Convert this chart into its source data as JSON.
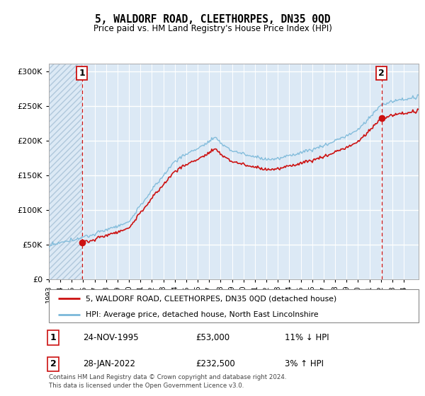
{
  "title": "5, WALDORF ROAD, CLEETHORPES, DN35 0QD",
  "subtitle": "Price paid vs. HM Land Registry's House Price Index (HPI)",
  "ytick_vals": [
    0,
    50000,
    100000,
    150000,
    200000,
    250000,
    300000
  ],
  "ylim": [
    0,
    312000
  ],
  "xlim_start": 1993.0,
  "xlim_end": 2025.3,
  "hpi_color": "#7ab8d9",
  "price_color": "#cc1111",
  "marker_color": "#cc1111",
  "dashed_line_color": "#cc1111",
  "plot_bg": "#dce9f5",
  "hatch_color": "#b0c8dc",
  "grid_color": "#ffffff",
  "sale1_x": 1995.9,
  "sale1_y": 53000,
  "sale1_label": "1",
  "sale1_date": "24-NOV-1995",
  "sale1_price": "£53,000",
  "sale1_hpi": "11% ↓ HPI",
  "sale2_x": 2022.07,
  "sale2_y": 232500,
  "sale2_label": "2",
  "sale2_date": "28-JAN-2022",
  "sale2_price": "£232,500",
  "sale2_hpi": "3% ↑ HPI",
  "legend_line1": "5, WALDORF ROAD, CLEETHORPES, DN35 0QD (detached house)",
  "legend_line2": "HPI: Average price, detached house, North East Lincolnshire",
  "footer": "Contains HM Land Registry data © Crown copyright and database right 2024.\nThis data is licensed under the Open Government Licence v3.0.",
  "xtick_years": [
    1993,
    1994,
    1995,
    1996,
    1997,
    1998,
    1999,
    2000,
    2001,
    2002,
    2003,
    2004,
    2005,
    2006,
    2007,
    2008,
    2009,
    2010,
    2011,
    2012,
    2013,
    2014,
    2015,
    2016,
    2017,
    2018,
    2019,
    2020,
    2021,
    2022,
    2023,
    2024
  ]
}
